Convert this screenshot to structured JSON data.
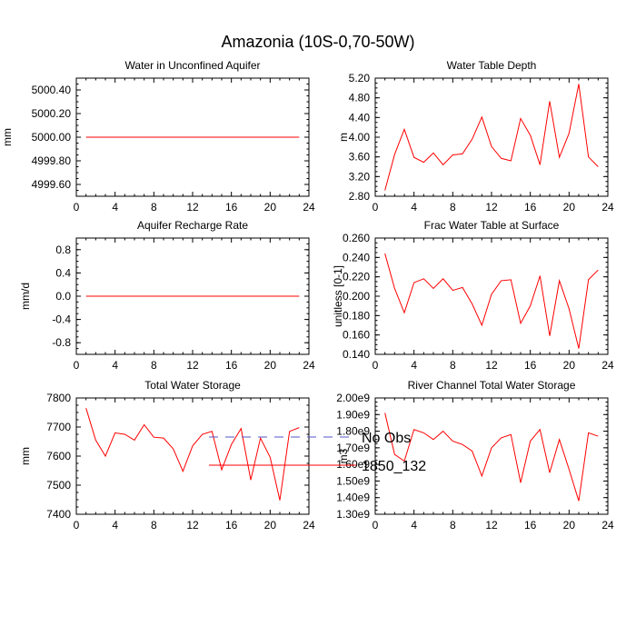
{
  "figure": {
    "title": "Amazonia (10S-0,70-50W)"
  },
  "legend": {
    "entries": [
      {
        "label": "No Obs",
        "color": "#5555cc",
        "style": "dashed"
      },
      {
        "label": "1850_132",
        "color": "#ff0000",
        "style": "solid"
      }
    ]
  },
  "chart_data": [
    {
      "type": "line",
      "title": "Water in Unconfined Aquifer",
      "ylabel": "mm",
      "xlim": [
        0,
        24
      ],
      "xticks": [
        0,
        4,
        8,
        12,
        16,
        20,
        24
      ],
      "xtick_labels": [
        "0",
        "4",
        "8",
        "12",
        "16",
        "20",
        "24"
      ],
      "ylim": [
        4999.5,
        5000.5
      ],
      "yticks": [
        4999.6,
        4999.8,
        5000.0,
        5000.2,
        5000.4
      ],
      "ytick_labels": [
        "4999.60",
        "4999.80",
        "5000.00",
        "5000.20",
        "5000.40"
      ],
      "series": [
        {
          "name": "1850_132",
          "color": "#ff0000",
          "x": [
            1,
            2,
            3,
            4,
            5,
            6,
            7,
            8,
            9,
            10,
            11,
            12,
            13,
            14,
            15,
            16,
            17,
            18,
            19,
            20,
            21,
            22,
            23
          ],
          "y": [
            5000,
            5000,
            5000,
            5000,
            5000,
            5000,
            5000,
            5000,
            5000,
            5000,
            5000,
            5000,
            5000,
            5000,
            5000,
            5000,
            5000,
            5000,
            5000,
            5000,
            5000,
            5000,
            5000
          ]
        }
      ]
    },
    {
      "type": "line",
      "title": "Water Table Depth",
      "ylabel": "m",
      "xlim": [
        0,
        24
      ],
      "xticks": [
        0,
        4,
        8,
        12,
        16,
        20,
        24
      ],
      "xtick_labels": [
        "0",
        "4",
        "8",
        "12",
        "16",
        "20",
        "24"
      ],
      "ylim": [
        2.8,
        5.2
      ],
      "yticks": [
        2.8,
        3.2,
        3.6,
        4.0,
        4.4,
        4.8,
        5.2
      ],
      "ytick_labels": [
        "2.80",
        "3.20",
        "3.60",
        "4.00",
        "4.40",
        "4.80",
        "5.20"
      ],
      "series": [
        {
          "name": "1850_132",
          "color": "#ff0000",
          "x": [
            1,
            2,
            3,
            4,
            5,
            6,
            7,
            8,
            9,
            10,
            11,
            12,
            13,
            14,
            15,
            16,
            17,
            18,
            19,
            20,
            21,
            22,
            23
          ],
          "y": [
            2.92,
            3.65,
            4.16,
            3.59,
            3.49,
            3.68,
            3.44,
            3.64,
            3.66,
            3.96,
            4.41,
            3.81,
            3.57,
            3.52,
            4.38,
            4.04,
            3.44,
            4.73,
            3.59,
            4.08,
            5.08,
            3.6,
            3.4
          ]
        }
      ]
    },
    {
      "type": "line",
      "title": "Aquifer Recharge Rate",
      "ylabel": "mm/d",
      "xlim": [
        0,
        24
      ],
      "xticks": [
        0,
        4,
        8,
        12,
        16,
        20,
        24
      ],
      "xtick_labels": [
        "0",
        "4",
        "8",
        "12",
        "16",
        "20",
        "24"
      ],
      "ylim": [
        -1.0,
        1.0
      ],
      "yticks": [
        -0.8,
        -0.4,
        0.0,
        0.4,
        0.8
      ],
      "ytick_labels": [
        "-0.8",
        "-0.4",
        "0.0",
        "0.4",
        "0.8"
      ],
      "series": [
        {
          "name": "1850_132",
          "color": "#ff0000",
          "x": [
            1,
            2,
            3,
            4,
            5,
            6,
            7,
            8,
            9,
            10,
            11,
            12,
            13,
            14,
            15,
            16,
            17,
            18,
            19,
            20,
            21,
            22,
            23
          ],
          "y": [
            0,
            0,
            0,
            0,
            0,
            0,
            0,
            0,
            0,
            0,
            0,
            0,
            0,
            0,
            0,
            0,
            0,
            0,
            0,
            0,
            0,
            0,
            0
          ]
        }
      ]
    },
    {
      "type": "line",
      "title": "Frac Water Table at Surface",
      "ylabel": "unitless [0-1]",
      "xlim": [
        0,
        24
      ],
      "xticks": [
        0,
        4,
        8,
        12,
        16,
        20,
        24
      ],
      "xtick_labels": [
        "0",
        "4",
        "8",
        "12",
        "16",
        "20",
        "24"
      ],
      "ylim": [
        0.14,
        0.26
      ],
      "yticks": [
        0.14,
        0.16,
        0.18,
        0.2,
        0.22,
        0.24,
        0.26
      ],
      "ytick_labels": [
        "0.140",
        "0.160",
        "0.180",
        "0.200",
        "0.220",
        "0.240",
        "0.260"
      ],
      "series": [
        {
          "name": "1850_132",
          "color": "#ff0000",
          "x": [
            1,
            2,
            3,
            4,
            5,
            6,
            7,
            8,
            9,
            10,
            11,
            12,
            13,
            14,
            15,
            16,
            17,
            18,
            19,
            20,
            21,
            22,
            23
          ],
          "y": [
            0.244,
            0.208,
            0.183,
            0.214,
            0.218,
            0.208,
            0.218,
            0.206,
            0.209,
            0.192,
            0.17,
            0.202,
            0.216,
            0.217,
            0.172,
            0.19,
            0.221,
            0.159,
            0.216,
            0.187,
            0.146,
            0.217,
            0.227
          ]
        }
      ]
    },
    {
      "type": "line",
      "title": "Total Water Storage",
      "ylabel": "mm",
      "xlim": [
        0,
        24
      ],
      "xticks": [
        0,
        4,
        8,
        12,
        16,
        20,
        24
      ],
      "xtick_labels": [
        "0",
        "4",
        "8",
        "12",
        "16",
        "20",
        "24"
      ],
      "ylim": [
        7400,
        7800
      ],
      "yticks": [
        7400,
        7500,
        7600,
        7700,
        7800
      ],
      "ytick_labels": [
        "7400",
        "7500",
        "7600",
        "7700",
        "7800"
      ],
      "series": [
        {
          "name": "1850_132",
          "color": "#ff0000",
          "x": [
            1,
            2,
            3,
            4,
            5,
            6,
            7,
            8,
            9,
            10,
            11,
            12,
            13,
            14,
            15,
            16,
            17,
            18,
            19,
            20,
            21,
            22,
            23
          ],
          "y": [
            7765,
            7655,
            7600,
            7680,
            7675,
            7655,
            7708,
            7665,
            7662,
            7625,
            7548,
            7635,
            7675,
            7685,
            7553,
            7640,
            7695,
            7518,
            7662,
            7596,
            7448,
            7685,
            7698
          ]
        }
      ]
    },
    {
      "type": "line",
      "title": "River Channel Total Water Storage",
      "ylabel": "m3",
      "xlim": [
        0,
        24
      ],
      "xticks": [
        0,
        4,
        8,
        12,
        16,
        20,
        24
      ],
      "xtick_labels": [
        "0",
        "4",
        "8",
        "12",
        "16",
        "20",
        "24"
      ],
      "ylim": [
        1300000000.0,
        2000000000.0
      ],
      "yticks": [
        1300000000.0,
        1400000000.0,
        1500000000.0,
        1600000000.0,
        1700000000.0,
        1800000000.0,
        1900000000.0,
        2000000000.0
      ],
      "ytick_labels": [
        "1.30e9",
        "1.40e9",
        "1.50e9",
        "1.60e9",
        "1.70e9",
        "1.80e9",
        "1.90e9",
        "2.00e9"
      ],
      "series": [
        {
          "name": "1850_132",
          "color": "#ff0000",
          "x": [
            1,
            2,
            3,
            4,
            5,
            6,
            7,
            8,
            9,
            10,
            11,
            12,
            13,
            14,
            15,
            16,
            17,
            18,
            19,
            20,
            21,
            22,
            23
          ],
          "y": [
            1910000000.0,
            1660000000.0,
            1620000000.0,
            1810000000.0,
            1790000000.0,
            1750000000.0,
            1800000000.0,
            1740000000.0,
            1720000000.0,
            1680000000.0,
            1530000000.0,
            1700000000.0,
            1760000000.0,
            1780000000.0,
            1490000000.0,
            1740000000.0,
            1810000000.0,
            1550000000.0,
            1750000000.0,
            1570000000.0,
            1380000000.0,
            1790000000.0,
            1770000000.0
          ]
        }
      ]
    }
  ]
}
